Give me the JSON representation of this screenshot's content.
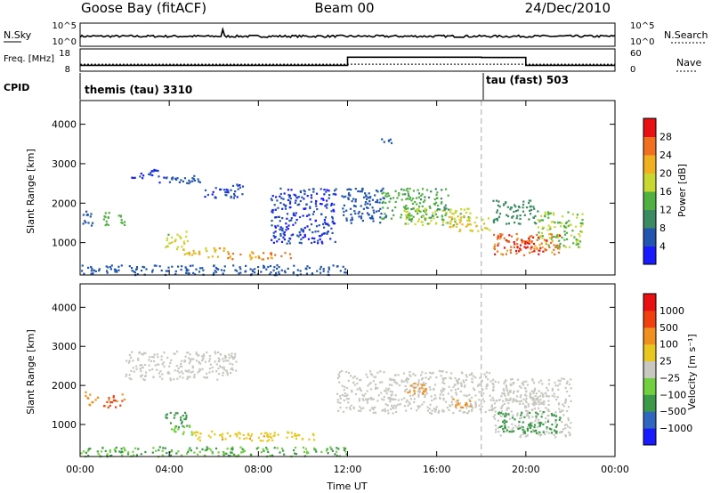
{
  "header": {
    "station": "Goose Bay (fitACF)",
    "beam": "Beam 00",
    "date": "24/Dec/2010"
  },
  "chart_data": [
    {
      "type": "line",
      "panel": "noise",
      "left_label": "N.Sky",
      "right_label": "N.Search",
      "left_ticks": [
        "10^5",
        "10^0"
      ],
      "right_ticks": [
        "10^5",
        "10^0"
      ],
      "note": "N.Sky noise level trace (roughly flat near 10^0)"
    },
    {
      "type": "line",
      "panel": "frequency",
      "left_label": "Freq. [MHz]",
      "right_label": "Nave",
      "left_ticks": [
        "18",
        "8"
      ],
      "right_ticks": [
        "60",
        "0"
      ],
      "freq_series": {
        "x_hours": [
          0,
          12.0,
          12.0,
          18.0,
          18.0,
          20.0,
          20.0,
          24
        ],
        "y_mhz": [
          10,
          10,
          17,
          17,
          16.8,
          16.8,
          10,
          10
        ]
      },
      "nave_value": 18
    },
    {
      "type": "table",
      "panel": "cpid",
      "label": "CPID",
      "programs": [
        {
          "name": "themis (tau) 3310",
          "start_hour": 0
        },
        {
          "name": "tau (fast) 503",
          "start_hour": 18
        }
      ]
    },
    {
      "type": "heatmap",
      "panel": "power",
      "ylabel": "Slant Range [km]",
      "ylim": [
        180,
        4600
      ],
      "yticks": [
        1000,
        2000,
        3000,
        4000
      ],
      "xlim_hours": [
        0,
        24
      ],
      "colorbar_label": "Power [dB]",
      "colorbar_ticks": [
        4,
        8,
        12,
        16,
        20,
        24,
        28
      ],
      "colorbar_colors": [
        "#1a1aff",
        "#2255b0",
        "#3a8a62",
        "#50b040",
        "#c8d830",
        "#f0b020",
        "#f07020",
        "#e81010"
      ],
      "dashed_line_hour": 18,
      "blobs": [
        {
          "t": [
            0.1,
            0.7
          ],
          "r": [
            1450,
            1850
          ],
          "v": 5
        },
        {
          "t": [
            1.0,
            2.0
          ],
          "r": [
            1450,
            1800
          ],
          "v": 14
        },
        {
          "t": [
            2.2,
            3.5
          ],
          "r": [
            2650,
            2900
          ],
          "v": 4
        },
        {
          "t": [
            3.5,
            4.2
          ],
          "r": [
            2500,
            2700
          ],
          "v": 4
        },
        {
          "t": [
            4.2,
            5.6
          ],
          "r": [
            2500,
            2750
          ],
          "v": 5
        },
        {
          "t": [
            5.5,
            7.3
          ],
          "r": [
            2150,
            2500
          ],
          "v": 4
        },
        {
          "t": [
            3.8,
            4.8
          ],
          "r": [
            850,
            1300
          ],
          "v": 18
        },
        {
          "t": [
            4.5,
            6.5
          ],
          "r": [
            650,
            900
          ],
          "v": 22
        },
        {
          "t": [
            6.5,
            9.5
          ],
          "r": [
            600,
            800
          ],
          "v": 24
        },
        {
          "t": [
            0.0,
            12.0
          ],
          "r": [
            200,
            450
          ],
          "v": 6
        },
        {
          "t": [
            8.5,
            11.5
          ],
          "r": [
            1000,
            2400
          ],
          "v": 4
        },
        {
          "t": [
            11.7,
            13.7
          ],
          "r": [
            1500,
            2400
          ],
          "v": 7
        },
        {
          "t": [
            13.5,
            16.5
          ],
          "r": [
            1600,
            2400
          ],
          "v": 13
        },
        {
          "t": [
            14.5,
            17.5
          ],
          "r": [
            1450,
            1900
          ],
          "v": 17
        },
        {
          "t": [
            16.5,
            18.5
          ],
          "r": [
            1300,
            1700
          ],
          "v": 20
        },
        {
          "t": [
            18.5,
            20.5
          ],
          "r": [
            1500,
            2100
          ],
          "v": 10
        },
        {
          "t": [
            18.5,
            21.5
          ],
          "r": [
            700,
            1250
          ],
          "v": 26
        },
        {
          "t": [
            19.0,
            21.0
          ],
          "r": [
            800,
            1100
          ],
          "v": 28
        },
        {
          "t": [
            20.5,
            22.5
          ],
          "r": [
            900,
            1800
          ],
          "v": 16
        },
        {
          "t": [
            13.5,
            14.0
          ],
          "r": [
            3500,
            3700
          ],
          "v": 6
        }
      ]
    },
    {
      "type": "heatmap",
      "panel": "velocity",
      "ylabel": "Slant Range [km]",
      "ylim": [
        180,
        4600
      ],
      "yticks": [
        1000,
        2000,
        3000,
        4000
      ],
      "xlim_hours": [
        0,
        24
      ],
      "colorbar_label": "Velocity [m s⁻¹]",
      "colorbar_ticks": [
        "1000",
        "500",
        "100",
        "25",
        "−25",
        "−100",
        "−500",
        "−1000"
      ],
      "colorbar_colors": [
        "#1a1aff",
        "#2e66c0",
        "#3a9a48",
        "#70d040",
        "#c8c8c0",
        "#e8c820",
        "#f09020",
        "#f04010",
        "#e81010"
      ],
      "dashed_line_hour": 18,
      "xticks": [
        "00:00",
        "04:00",
        "08:00",
        "12:00",
        "16:00",
        "20:00",
        "00:00"
      ],
      "xlabel": "Time UT",
      "blobs": [
        {
          "t": [
            0.2,
            0.8
          ],
          "r": [
            1500,
            1850
          ],
          "v": -200
        },
        {
          "t": [
            1.0,
            2.0
          ],
          "r": [
            1450,
            1800
          ],
          "v": -300
        },
        {
          "t": [
            3.8,
            4.8
          ],
          "r": [
            900,
            1350
          ],
          "v": 80
        },
        {
          "t": [
            4.0,
            5.0
          ],
          "r": [
            750,
            1000
          ],
          "v": 40
        },
        {
          "t": [
            5.0,
            10.5
          ],
          "r": [
            600,
            850
          ],
          "v": -90
        },
        {
          "t": [
            0.0,
            12.0
          ],
          "r": [
            200,
            450
          ],
          "v": 60
        },
        {
          "t": [
            2.0,
            7.0
          ],
          "r": [
            2150,
            2900
          ],
          "v": 0
        },
        {
          "t": [
            11.5,
            18.5
          ],
          "r": [
            1300,
            2400
          ],
          "v": 0
        },
        {
          "t": [
            18.5,
            22.0
          ],
          "r": [
            700,
            2200
          ],
          "v": 0
        },
        {
          "t": [
            18.7,
            21.5
          ],
          "r": [
            800,
            1350
          ],
          "v": 70
        },
        {
          "t": [
            19.0,
            21.0
          ],
          "r": [
            1550,
            1900
          ],
          "v": 0
        },
        {
          "t": [
            16.5,
            17.5
          ],
          "r": [
            1450,
            1700
          ],
          "v": -150
        },
        {
          "t": [
            14.5,
            15.5
          ],
          "r": [
            1800,
            2100
          ],
          "v": -120
        }
      ]
    }
  ]
}
